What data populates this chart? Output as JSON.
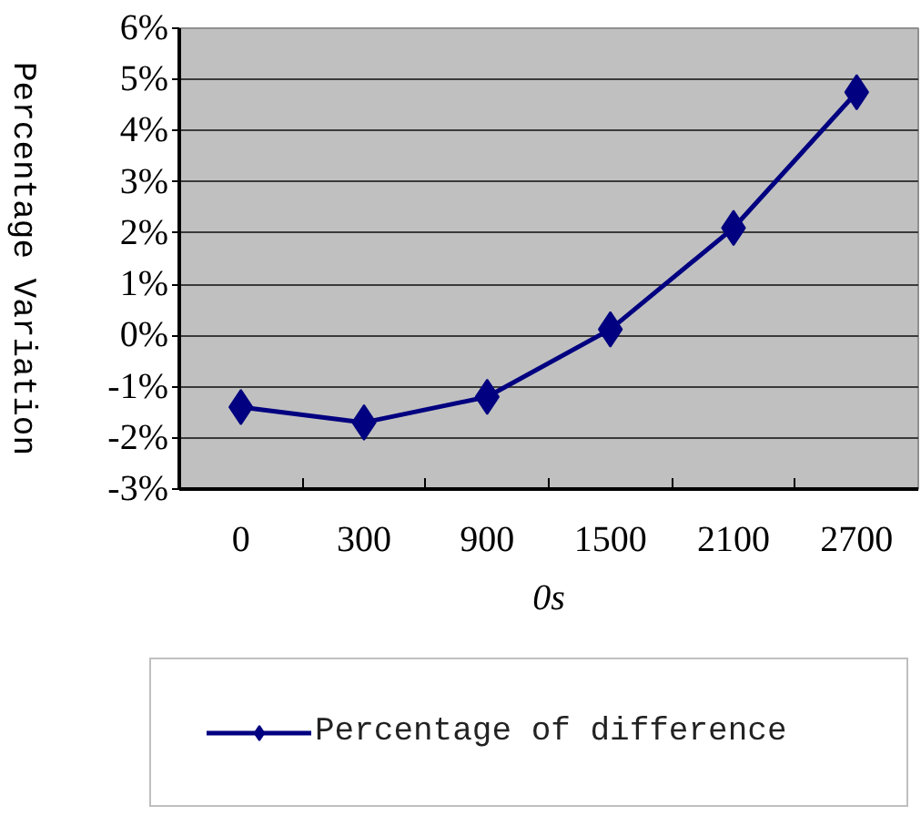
{
  "chart_data": {
    "type": "line",
    "xlabel": "0s",
    "ylabel": "Percentage Variation",
    "categories": [
      "0",
      "300",
      "900",
      "1500",
      "2100",
      "2700"
    ],
    "series": [
      {
        "name": "Percentage of difference",
        "color": "#000080",
        "values": [
          -1.4,
          -1.7,
          -1.2,
          0.12,
          2.1,
          4.75
        ]
      }
    ],
    "ylim": [
      -3,
      6
    ],
    "yticks": [
      {
        "value": -3,
        "label": "-3%"
      },
      {
        "value": -2,
        "label": "-2%"
      },
      {
        "value": -1,
        "label": "-1%"
      },
      {
        "value": 0,
        "label": "0%"
      },
      {
        "value": 1,
        "label": "1%"
      },
      {
        "value": 2,
        "label": "2%"
      },
      {
        "value": 3,
        "label": "3%"
      },
      {
        "value": 4,
        "label": "4%"
      },
      {
        "value": 5,
        "label": "5%"
      },
      {
        "value": 6,
        "label": "6%"
      }
    ],
    "grid": "y",
    "legend": "bottom",
    "marker": "diamond",
    "line_style": "solid"
  }
}
